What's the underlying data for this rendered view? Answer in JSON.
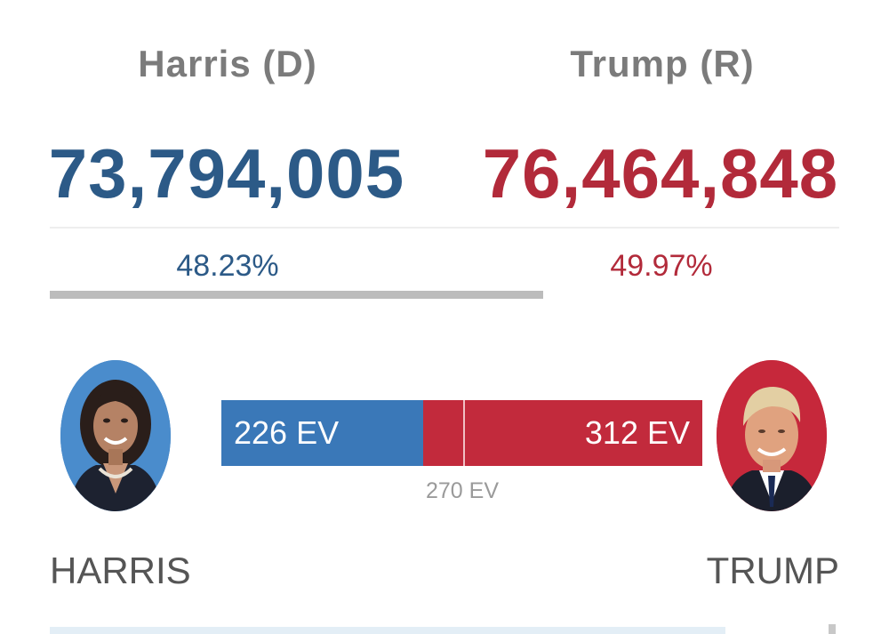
{
  "harris": {
    "name": "Harris (D)",
    "votes": "73,794,005",
    "percent": "48.23%",
    "percent_value": 48.23,
    "ev_label": "226 EV",
    "ev_value": 226,
    "short_name": "HARRIS",
    "color": "#2c5a87",
    "bar_color": "#3a78b8"
  },
  "trump": {
    "name": "Trump (R)",
    "votes": "76,464,848",
    "percent": "49.97%",
    "percent_value": 49.97,
    "ev_label": "312 EV",
    "ev_value": 312,
    "short_name": "TRUMP",
    "color": "#b22a3a",
    "bar_color": "#c22a3c"
  },
  "threshold": {
    "label": "270 EV",
    "value": 270,
    "total": 538
  },
  "colors": {
    "name_gray": "#7b7b7b",
    "divider": "#eeeeee",
    "track": "#bcbcbc"
  },
  "icons": {
    "harris_photo": "harris-portrait",
    "trump_photo": "trump-portrait"
  }
}
